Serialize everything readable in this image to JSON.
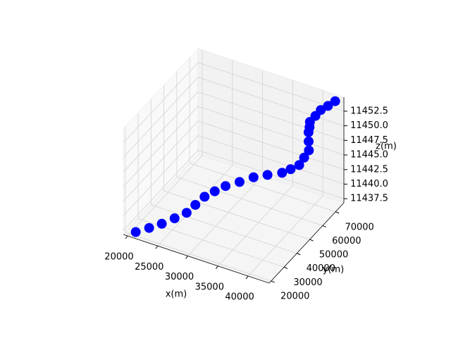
{
  "chart_data": {
    "type": "scatter3d",
    "xlabel": "x(m)",
    "ylabel": "y(m)",
    "zlabel": "z(m)",
    "color": "#0000ff",
    "x": [
      21000,
      22900,
      24700,
      26500,
      28200,
      29200,
      30300,
      31500,
      32800,
      34500,
      36200,
      37900,
      39700,
      40500,
      41300,
      41600,
      41900,
      41500,
      41100,
      40900,
      40600,
      41000,
      41400,
      42100,
      42800
    ],
    "y": [
      20200,
      21700,
      23100,
      24600,
      26000,
      28100,
      30100,
      32400,
      34700,
      37600,
      40500,
      43400,
      46300,
      49200,
      52100,
      54500,
      56800,
      58500,
      60300,
      62000,
      63700,
      66100,
      68400,
      70700,
      73000
    ],
    "z": [
      11437.4,
      11438.4,
      11439.4,
      11440.6,
      11441.8,
      11443.0,
      11444.3,
      11445.1,
      11445.9,
      11446.5,
      11447.2,
      11447.5,
      11447.8,
      11448.0,
      11448.3,
      11449.1,
      11449.9,
      11450.9,
      11451.9,
      11452.3,
      11452.7,
      11453.3,
      11453.9,
      11454.3,
      11454.8
    ],
    "xlim": [
      19300,
      43500
    ],
    "ylim": [
      18500,
      76500
    ],
    "zlim": [
      11436.8,
      11454.9
    ],
    "xticks": [
      20000,
      25000,
      30000,
      35000,
      40000
    ],
    "yticks": [
      20000,
      30000,
      40000,
      50000,
      60000,
      70000
    ],
    "zticks": [
      11437.5,
      {
        "value": 11440,
        "label": "11440.0"
      },
      11442.5,
      {
        "value": 11445,
        "label": "11445.0"
      },
      11447.5,
      {
        "value": 11450,
        "label": "11450.0"
      },
      11452.5
    ],
    "grid": true
  }
}
